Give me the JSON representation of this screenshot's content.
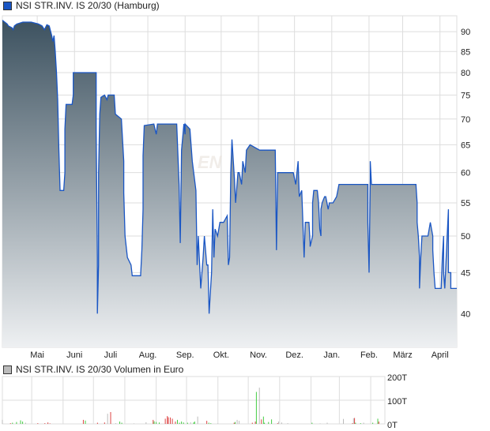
{
  "chart_data": [
    {
      "type": "area",
      "legend": "NSI STR.INV. IS 20/30 (Hamburg)",
      "y_scale": "log",
      "ylim": [
        36.3,
        94.2
      ],
      "yticks": [
        40,
        45,
        50,
        55,
        60,
        65,
        70,
        75,
        80,
        85,
        90
      ],
      "xticks": [
        "Mai",
        "Juni",
        "Juli",
        "Aug.",
        "Sep.",
        "Okt.",
        "Nov.",
        "Dez.",
        "Jan.",
        "Feb.",
        "März",
        "April"
      ],
      "xtick_dates": [
        "05-01",
        "06-01",
        "07-01",
        "08-01",
        "09-01",
        "10-01",
        "11-01",
        "12-01",
        "01-01",
        "02-01",
        "03-01",
        "04-01"
      ],
      "xrange": [
        "04-02",
        "04-15"
      ],
      "grid": true,
      "yaxis_side": "right",
      "colors": {
        "line": "#1a56c4",
        "fill_top": "#3d5260",
        "fill_bottom": "#eef0f2",
        "grid": "#dddddd"
      },
      "points": [
        [
          "04-02",
          93
        ],
        [
          "04-06",
          92
        ],
        [
          "04-07",
          91.5
        ],
        [
          "04-10",
          91
        ],
        [
          "04-11",
          90.5
        ],
        [
          "04-12",
          91.5
        ],
        [
          "04-14",
          92
        ],
        [
          "04-19",
          92.5
        ],
        [
          "04-26",
          92.5
        ],
        [
          "05-02",
          92
        ],
        [
          "05-05",
          91.5
        ],
        [
          "05-07",
          90.5
        ],
        [
          "05-09",
          91.8
        ],
        [
          "05-11",
          91.5
        ],
        [
          "05-13",
          89
        ],
        [
          "05-14",
          87.5
        ],
        [
          "05-15",
          89
        ],
        [
          "05-16",
          85
        ],
        [
          "05-17",
          80
        ],
        [
          "05-18",
          74
        ],
        [
          "05-19",
          64
        ],
        [
          "05-20",
          57
        ],
        [
          "05-23",
          57
        ],
        [
          "05-24",
          60
        ],
        [
          "05-24",
          68
        ],
        [
          "05-25",
          73
        ],
        [
          "05-30",
          73
        ],
        [
          "05-31",
          75
        ],
        [
          "05-31",
          80
        ],
        [
          "06-19",
          80
        ],
        [
          "06-19",
          68
        ],
        [
          "06-20",
          47
        ],
        [
          "06-20",
          40
        ],
        [
          "06-21",
          46
        ],
        [
          "06-21",
          60
        ],
        [
          "06-22",
          71
        ],
        [
          "06-23",
          74.5
        ],
        [
          "06-26",
          75
        ],
        [
          "06-28",
          74
        ],
        [
          "06-29",
          75
        ],
        [
          "07-04",
          75
        ],
        [
          "07-05",
          71
        ],
        [
          "07-10",
          70
        ],
        [
          "07-12",
          62
        ],
        [
          "07-12",
          56.6
        ],
        [
          "07-13",
          50
        ],
        [
          "07-15",
          47
        ],
        [
          "07-18",
          46
        ],
        [
          "07-19",
          44.6
        ],
        [
          "07-26",
          44.6
        ],
        [
          "07-27",
          48
        ],
        [
          "07-28",
          54
        ],
        [
          "07-28",
          63
        ],
        [
          "07-29",
          68.7
        ],
        [
          "08-06",
          69
        ],
        [
          "08-08",
          67
        ],
        [
          "08-09",
          69
        ],
        [
          "08-25",
          69
        ],
        [
          "08-27",
          58
        ],
        [
          "08-28",
          49
        ],
        [
          "08-29",
          64
        ],
        [
          "08-31",
          69
        ],
        [
          "09-01",
          67
        ],
        [
          "09-01",
          69
        ],
        [
          "09-05",
          68
        ],
        [
          "09-07",
          62
        ],
        [
          "09-10",
          57
        ],
        [
          "09-11",
          46
        ],
        [
          "09-12",
          50
        ],
        [
          "09-14",
          43
        ],
        [
          "09-16",
          47
        ],
        [
          "09-17",
          50
        ],
        [
          "09-19",
          46
        ],
        [
          "09-20",
          46
        ],
        [
          "09-21",
          40
        ],
        [
          "09-23",
          45
        ],
        [
          "09-24",
          54
        ],
        [
          "09-25",
          47
        ],
        [
          "09-26",
          51
        ],
        [
          "09-28",
          50
        ],
        [
          "09-30",
          52
        ],
        [
          "10-03",
          52
        ],
        [
          "10-06",
          53
        ],
        [
          "10-07",
          46
        ],
        [
          "10-08",
          47
        ],
        [
          "10-09",
          60
        ],
        [
          "10-10",
          66
        ],
        [
          "10-12",
          59
        ],
        [
          "10-13",
          55
        ],
        [
          "10-15",
          60
        ],
        [
          "10-16",
          60
        ],
        [
          "10-18",
          58
        ],
        [
          "10-19",
          62
        ],
        [
          "10-21",
          60
        ],
        [
          "10-22",
          64
        ],
        [
          "10-25",
          65
        ],
        [
          "11-02",
          64
        ],
        [
          "11-15",
          64
        ],
        [
          "11-16",
          48
        ],
        [
          "11-17",
          60
        ],
        [
          "11-19",
          60
        ],
        [
          "11-30",
          60
        ],
        [
          "12-02",
          58
        ],
        [
          "12-04",
          62
        ],
        [
          "12-05",
          56
        ],
        [
          "12-07",
          57
        ],
        [
          "12-09",
          47
        ],
        [
          "12-10",
          52
        ],
        [
          "12-13",
          52
        ],
        [
          "12-14",
          49
        ],
        [
          "12-14",
          48.5
        ],
        [
          "12-16",
          50
        ],
        [
          "12-16",
          55
        ],
        [
          "12-17",
          57
        ],
        [
          "12-20",
          57
        ],
        [
          "12-21",
          55
        ],
        [
          "12-22",
          51
        ],
        [
          "12-23",
          50
        ],
        [
          "12-23",
          54
        ],
        [
          "12-24",
          55
        ],
        [
          "12-26",
          56
        ],
        [
          "12-27",
          56
        ],
        [
          "12-28",
          55
        ],
        [
          "12-29",
          54
        ],
        [
          "12-30",
          55
        ],
        [
          "01-02",
          55
        ],
        [
          "01-05",
          56
        ],
        [
          "01-07",
          58
        ],
        [
          "01-31",
          58
        ],
        [
          "01-31",
          52
        ],
        [
          "02-01",
          45
        ],
        [
          "02-02",
          59
        ],
        [
          "02-02",
          62
        ],
        [
          "02-03",
          58
        ],
        [
          "02-04",
          58
        ],
        [
          "03-12",
          58
        ],
        [
          "03-13",
          55
        ],
        [
          "03-13",
          52
        ],
        [
          "03-14",
          50
        ],
        [
          "03-15",
          47
        ],
        [
          "03-15",
          43
        ],
        [
          "03-16",
          47
        ],
        [
          "03-17",
          50
        ],
        [
          "03-22",
          50
        ],
        [
          "03-24",
          52
        ],
        [
          "03-26",
          50
        ],
        [
          "03-26",
          48
        ],
        [
          "03-27",
          45
        ],
        [
          "03-28",
          43
        ],
        [
          "03-31",
          43
        ],
        [
          "04-02",
          43
        ],
        [
          "04-03",
          47
        ],
        [
          "04-04",
          50
        ],
        [
          "04-04",
          45
        ],
        [
          "04-05",
          43
        ],
        [
          "04-07",
          50
        ],
        [
          "04-08",
          54
        ],
        [
          "04-08",
          45
        ],
        [
          "04-10",
          45
        ],
        [
          "04-10",
          43
        ],
        [
          "04-15",
          43
        ]
      ]
    },
    {
      "type": "bar",
      "legend": "NSI STR.INV. IS 20/30 Volumen in Euro",
      "ylim": [
        0,
        200
      ],
      "yticks": [
        0,
        100,
        200
      ],
      "ytick_labels": [
        "0T",
        "100T",
        "200T"
      ],
      "grid": true,
      "yaxis_side": "right",
      "colors": {
        "up": "#44cc44",
        "down": "#dd4444",
        "neutral": "#bbbbbb"
      },
      "bars": [
        [
          "04-02",
          17,
          "neutral"
        ],
        [
          "04-10",
          3,
          "down"
        ],
        [
          "04-12",
          5,
          "up"
        ],
        [
          "04-16",
          8,
          "up"
        ],
        [
          "04-20",
          15,
          "up"
        ],
        [
          "04-22",
          10,
          "up"
        ],
        [
          "04-25",
          5,
          "neutral"
        ],
        [
          "05-07",
          3,
          "down"
        ],
        [
          "05-14",
          3,
          "down"
        ],
        [
          "05-17",
          6,
          "down"
        ],
        [
          "05-19",
          2,
          "down"
        ],
        [
          "06-21",
          17,
          "down"
        ],
        [
          "06-23",
          14,
          "up"
        ],
        [
          "07-05",
          5,
          "down"
        ],
        [
          "07-12",
          6,
          "down"
        ],
        [
          "07-15",
          43,
          "neutral"
        ],
        [
          "07-18",
          50,
          "down"
        ],
        [
          "07-23",
          3,
          "neutral"
        ],
        [
          "07-27",
          10,
          "up"
        ],
        [
          "07-29",
          5,
          "up"
        ],
        [
          "08-10",
          2,
          "neutral"
        ],
        [
          "08-22",
          7,
          "neutral"
        ],
        [
          "08-29",
          17,
          "down"
        ],
        [
          "08-30",
          11,
          "up"
        ],
        [
          "09-01",
          8,
          "up"
        ],
        [
          "09-04",
          6,
          "up"
        ],
        [
          "09-10",
          22,
          "down"
        ],
        [
          "09-12",
          33,
          "down"
        ],
        [
          "09-13",
          28,
          "down"
        ],
        [
          "09-15",
          27,
          "down"
        ],
        [
          "09-17",
          22,
          "down"
        ],
        [
          "09-20",
          10,
          "down"
        ],
        [
          "09-22",
          17,
          "up"
        ],
        [
          "09-24",
          5,
          "up"
        ],
        [
          "09-26",
          10,
          "up"
        ],
        [
          "09-28",
          6,
          "up"
        ],
        [
          "10-02",
          5,
          "up"
        ],
        [
          "10-05",
          7,
          "neutral"
        ],
        [
          "10-08",
          6,
          "up"
        ],
        [
          "10-09",
          10,
          "up"
        ],
        [
          "10-12",
          31,
          "neutral"
        ],
        [
          "10-21",
          13,
          "down"
        ],
        [
          "10-23",
          5,
          "up"
        ],
        [
          "10-25",
          3,
          "up"
        ],
        [
          "11-01",
          2,
          "neutral"
        ],
        [
          "11-17",
          5,
          "down"
        ],
        [
          "11-18",
          8,
          "up"
        ],
        [
          "11-20",
          17,
          "neutral"
        ],
        [
          "11-22",
          13,
          "neutral"
        ],
        [
          "12-05",
          5,
          "down"
        ],
        [
          "12-08",
          10,
          "down"
        ],
        [
          "12-09",
          135,
          "up"
        ],
        [
          "12-12",
          153,
          "neutral"
        ],
        [
          "12-14",
          19,
          "down"
        ],
        [
          "12-16",
          31,
          "up"
        ],
        [
          "12-17",
          5,
          "up"
        ],
        [
          "12-21",
          8,
          "up"
        ],
        [
          "12-24",
          19,
          "up"
        ],
        [
          "12-30",
          3,
          "down"
        ],
        [
          "12-31",
          10,
          "neutral"
        ],
        [
          "01-03",
          6,
          "neutral"
        ],
        [
          "01-09",
          3,
          "neutral"
        ],
        [
          "02-02",
          5,
          "up"
        ],
        [
          "02-10",
          2,
          "neutral"
        ],
        [
          "02-17",
          5,
          "neutral"
        ],
        [
          "03-05",
          21,
          "neutral"
        ],
        [
          "03-14",
          3,
          "down"
        ],
        [
          "03-15",
          24,
          "neutral"
        ],
        [
          "03-16",
          25,
          "down"
        ],
        [
          "03-17",
          5,
          "up"
        ],
        [
          "03-22",
          3,
          "up"
        ],
        [
          "03-25",
          5,
          "neutral"
        ],
        [
          "04-03",
          5,
          "up"
        ],
        [
          "04-08",
          22,
          "up"
        ],
        [
          "04-09",
          10,
          "down"
        ]
      ]
    }
  ]
}
